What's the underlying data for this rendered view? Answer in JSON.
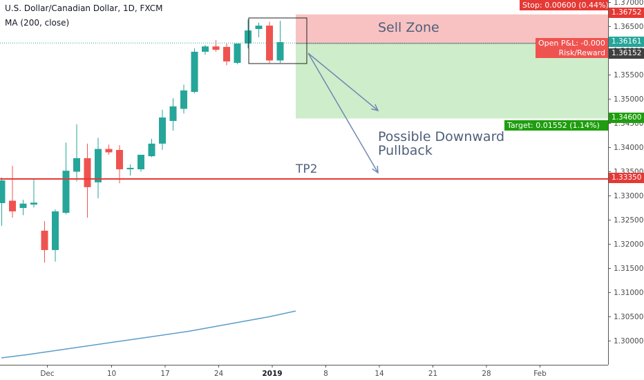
{
  "header": {
    "title": "U.S. Dollar/Canadian Dollar, 1D, FXCM",
    "indicator": "MA (200, close)"
  },
  "colors": {
    "up": "#26a69a",
    "down": "#ef5350",
    "ma": "#5b9cc9",
    "sell_zone": "#f7b7b7",
    "target_zone": "#c9ebc4",
    "tp_line": "#e53935",
    "arrow": "#6f87b4"
  },
  "annotations": {
    "sell_zone": "Sell Zone",
    "pullback_line1": "Possible Downward",
    "pullback_line2": "Pullback",
    "tp2": "TP2"
  },
  "tags": {
    "stop": "Stop: 0.00600 (0.44%)",
    "target": "Target: 0.01552 (1.14%)",
    "open_pnl": "Open P&L: -0.000",
    "risk_reward": "Risk/Reward"
  },
  "price_tags": {
    "stop_price": "1.36752",
    "current_price": "1.36161",
    "entry_price": "1.36152",
    "target_price": "1.34600",
    "tp2_price": "1.33350"
  },
  "chart_data": {
    "type": "candlestick",
    "title": "U.S. Dollar/Canadian Dollar, 1D, FXCM",
    "y_axis_ticks": [
      "1.37000",
      "1.36500",
      "1.36000",
      "1.35500",
      "1.35000",
      "1.34500",
      "1.34000",
      "1.33500",
      "1.33000",
      "1.32500",
      "1.32000",
      "1.31500",
      "1.31000",
      "1.30500",
      "1.30000"
    ],
    "ylim": [
      1.2955,
      1.3705
    ],
    "x_ticks": [
      {
        "label": "Dec",
        "index": 0
      },
      {
        "label": "10",
        "index": 6
      },
      {
        "label": "17",
        "index": 11
      },
      {
        "label": "24",
        "index": 16
      },
      {
        "label": "2019",
        "index": 21,
        "bold": true
      },
      {
        "label": "8",
        "index": 26
      },
      {
        "label": "14",
        "index": 31
      },
      {
        "label": "21",
        "index": 36
      },
      {
        "label": "28",
        "index": 41
      },
      {
        "label": "Feb",
        "index": 46
      }
    ],
    "candles": [
      {
        "o": 1.3285,
        "h": 1.3338,
        "l": 1.3238,
        "c": 1.3332
      },
      {
        "o": 1.329,
        "h": 1.3362,
        "l": 1.3255,
        "c": 1.3268
      },
      {
        "o": 1.3275,
        "h": 1.3292,
        "l": 1.326,
        "c": 1.3284
      },
      {
        "o": 1.3282,
        "h": 1.3336,
        "l": 1.3276,
        "c": 1.3286
      },
      {
        "o": 1.3228,
        "h": 1.3248,
        "l": 1.3162,
        "c": 1.3188
      },
      {
        "o": 1.3188,
        "h": 1.3272,
        "l": 1.3164,
        "c": 1.3268
      },
      {
        "o": 1.3265,
        "h": 1.341,
        "l": 1.3262,
        "c": 1.3352
      },
      {
        "o": 1.335,
        "h": 1.3448,
        "l": 1.333,
        "c": 1.3378
      },
      {
        "o": 1.3378,
        "h": 1.3408,
        "l": 1.3255,
        "c": 1.3318
      },
      {
        "o": 1.3328,
        "h": 1.342,
        "l": 1.3295,
        "c": 1.3397
      },
      {
        "o": 1.3397,
        "h": 1.3406,
        "l": 1.3385,
        "c": 1.339
      },
      {
        "o": 1.3395,
        "h": 1.3405,
        "l": 1.3326,
        "c": 1.3355
      },
      {
        "o": 1.3355,
        "h": 1.3365,
        "l": 1.3342,
        "c": 1.3358
      },
      {
        "o": 1.3355,
        "h": 1.3385,
        "l": 1.335,
        "c": 1.3385
      },
      {
        "o": 1.3382,
        "h": 1.3418,
        "l": 1.338,
        "c": 1.3408
      },
      {
        "o": 1.3408,
        "h": 1.3478,
        "l": 1.3395,
        "c": 1.3462
      },
      {
        "o": 1.3455,
        "h": 1.3502,
        "l": 1.3435,
        "c": 1.3485
      },
      {
        "o": 1.348,
        "h": 1.353,
        "l": 1.347,
        "c": 1.3518
      },
      {
        "o": 1.3515,
        "h": 1.3605,
        "l": 1.3512,
        "c": 1.3598
      },
      {
        "o": 1.3598,
        "h": 1.3612,
        "l": 1.3592,
        "c": 1.3609
      },
      {
        "o": 1.3609,
        "h": 1.3622,
        "l": 1.3598,
        "c": 1.3602
      },
      {
        "o": 1.3608,
        "h": 1.3615,
        "l": 1.357,
        "c": 1.3578
      },
      {
        "o": 1.3575,
        "h": 1.3615,
        "l": 1.3572,
        "c": 1.3615
      },
      {
        "o": 1.3615,
        "h": 1.3665,
        "l": 1.3605,
        "c": 1.3642
      },
      {
        "o": 1.3645,
        "h": 1.3658,
        "l": 1.3628,
        "c": 1.3652
      },
      {
        "o": 1.3652,
        "h": 1.366,
        "l": 1.3575,
        "c": 1.358
      },
      {
        "o": 1.358,
        "h": 1.3662,
        "l": 1.3575,
        "c": 1.3618
      }
    ],
    "moving_average": [
      1.2965,
      1.2972,
      1.298,
      1.2988,
      1.2996,
      1.3004,
      1.3012,
      1.302,
      1.303,
      1.304,
      1.305,
      1.3062
    ]
  }
}
